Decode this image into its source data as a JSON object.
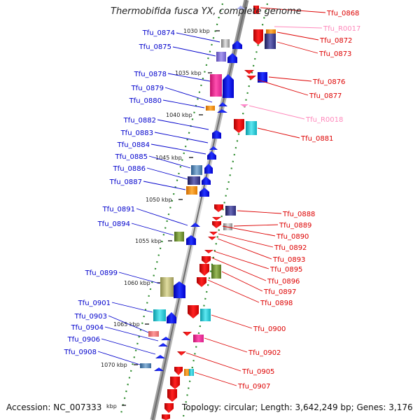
{
  "title": "Thermobifida fusca YX, complete genome",
  "footer": {
    "accession": "Accession: NC_007333",
    "topology": "Topology: circular; Length: 3,642,249 bp; Genes: 3,176"
  },
  "colors": {
    "left_labels": "#0000cc",
    "right_labels": "#dd0000",
    "rna_labels": "#ff88bb",
    "backbone": "#777777",
    "tick_dots": "#2a8a2a"
  },
  "scale_ticks": [
    {
      "label": "1030 kbp"
    },
    {
      "label": "1035 kbp"
    },
    {
      "label": "1040 kbp"
    },
    {
      "label": "1045 kbp"
    },
    {
      "label": "1050 kbp"
    },
    {
      "label": "1055 kbp"
    },
    {
      "label": "1060 kbp"
    },
    {
      "label": "1065 kbp"
    },
    {
      "label": "1070 kbp"
    },
    {
      "label": "kbp"
    }
  ],
  "left_labels": [
    {
      "text": "Tfu_0874"
    },
    {
      "text": "Tfu_0875"
    },
    {
      "text": "Tfu_0878"
    },
    {
      "text": "Tfu_0879"
    },
    {
      "text": "Tfu_0880"
    },
    {
      "text": "Tfu_0882"
    },
    {
      "text": "Tfu_0883"
    },
    {
      "text": "Tfu_0884"
    },
    {
      "text": "Tfu_0885"
    },
    {
      "text": "Tfu_0886"
    },
    {
      "text": "Tfu_0887"
    },
    {
      "text": "Tfu_0891"
    },
    {
      "text": "Tfu_0894"
    },
    {
      "text": "Tfu_0899"
    },
    {
      "text": "Tfu_0901"
    },
    {
      "text": "Tfu_0903"
    },
    {
      "text": "Tfu_0904"
    },
    {
      "text": "Tfu_0906"
    },
    {
      "text": "Tfu_0908"
    }
  ],
  "right_labels": [
    {
      "text": "Tfu_0868",
      "kind": "gene"
    },
    {
      "text": "Tfu_R0017",
      "kind": "rna"
    },
    {
      "text": "Tfu_0872",
      "kind": "gene"
    },
    {
      "text": "Tfu_0873",
      "kind": "gene"
    },
    {
      "text": "Tfu_0876",
      "kind": "gene"
    },
    {
      "text": "Tfu_0877",
      "kind": "gene"
    },
    {
      "text": "Tfu_R0018",
      "kind": "rna"
    },
    {
      "text": "Tfu_0881",
      "kind": "gene"
    },
    {
      "text": "Tfu_0888",
      "kind": "gene"
    },
    {
      "text": "Tfu_0889",
      "kind": "gene"
    },
    {
      "text": "Tfu_0890",
      "kind": "gene"
    },
    {
      "text": "Tfu_0892",
      "kind": "gene"
    },
    {
      "text": "Tfu_0893",
      "kind": "gene"
    },
    {
      "text": "Tfu_0895",
      "kind": "gene"
    },
    {
      "text": "Tfu_0896",
      "kind": "gene"
    },
    {
      "text": "Tfu_0897",
      "kind": "gene"
    },
    {
      "text": "Tfu_0898",
      "kind": "gene"
    },
    {
      "text": "Tfu_0900",
      "kind": "gene"
    },
    {
      "text": "Tfu_0902",
      "kind": "gene"
    },
    {
      "text": "Tfu_0905",
      "kind": "gene"
    },
    {
      "text": "Tfu_0907",
      "kind": "gene"
    }
  ]
}
